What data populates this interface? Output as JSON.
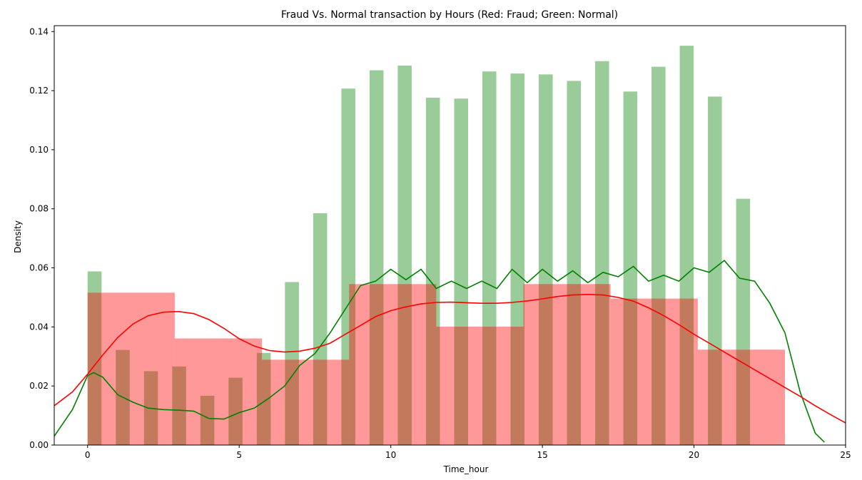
{
  "chart_data": {
    "type": "bar",
    "title": "Fraud Vs. Normal transaction by Hours (Red: Fraud; Green: Normal)",
    "xlabel": "Time_hour",
    "ylabel": "Density",
    "xlim": [
      -1.1,
      25
    ],
    "ylim": [
      0,
      0.142
    ],
    "xticks": [
      0,
      5,
      10,
      15,
      20,
      25
    ],
    "yticks": [
      0.0,
      0.02,
      0.04,
      0.06,
      0.08,
      0.1,
      0.12,
      0.14
    ],
    "grid": false,
    "series": [
      {
        "color": "#008000",
        "alpha": 0.4,
        "bar_width": 0.46,
        "bars": [
          {
            "x": 0.23,
            "y": 0.0588
          },
          {
            "x": 1.16,
            "y": 0.0322
          },
          {
            "x": 2.09,
            "y": 0.025
          },
          {
            "x": 3.02,
            "y": 0.0266
          },
          {
            "x": 3.95,
            "y": 0.0167
          },
          {
            "x": 4.88,
            "y": 0.0228
          },
          {
            "x": 5.81,
            "y": 0.0312
          },
          {
            "x": 6.74,
            "y": 0.0552
          },
          {
            "x": 7.67,
            "y": 0.0785
          },
          {
            "x": 8.6,
            "y": 0.1207
          },
          {
            "x": 9.53,
            "y": 0.1269
          },
          {
            "x": 10.46,
            "y": 0.1285
          },
          {
            "x": 11.39,
            "y": 0.1176
          },
          {
            "x": 12.32,
            "y": 0.1173
          },
          {
            "x": 13.25,
            "y": 0.1265
          },
          {
            "x": 14.18,
            "y": 0.1258
          },
          {
            "x": 15.11,
            "y": 0.1255
          },
          {
            "x": 16.04,
            "y": 0.1233
          },
          {
            "x": 16.97,
            "y": 0.13
          },
          {
            "x": 17.9,
            "y": 0.1197
          },
          {
            "x": 18.83,
            "y": 0.1281
          },
          {
            "x": 19.76,
            "y": 0.1352
          },
          {
            "x": 20.69,
            "y": 0.118
          },
          {
            "x": 21.62,
            "y": 0.0834
          }
        ],
        "kde": [
          [
            -1.1,
            0.003
          ],
          [
            -0.5,
            0.012
          ],
          [
            0,
            0.0235
          ],
          [
            0.2,
            0.0245
          ],
          [
            0.5,
            0.023
          ],
          [
            1,
            0.017
          ],
          [
            1.5,
            0.0145
          ],
          [
            2,
            0.0125
          ],
          [
            2.5,
            0.012
          ],
          [
            3,
            0.0118
          ],
          [
            3.5,
            0.0115
          ],
          [
            4,
            0.009
          ],
          [
            4.5,
            0.0088
          ],
          [
            5,
            0.011
          ],
          [
            5.5,
            0.0125
          ],
          [
            6,
            0.016
          ],
          [
            6.5,
            0.02
          ],
          [
            7,
            0.027
          ],
          [
            7.5,
            0.031
          ],
          [
            8,
            0.038
          ],
          [
            8.5,
            0.046
          ],
          [
            9,
            0.054
          ],
          [
            9.5,
            0.0555
          ],
          [
            10,
            0.0595
          ],
          [
            10.5,
            0.056
          ],
          [
            11,
            0.0595
          ],
          [
            11.5,
            0.053
          ],
          [
            12,
            0.0555
          ],
          [
            12.5,
            0.053
          ],
          [
            13,
            0.0555
          ],
          [
            13.5,
            0.053
          ],
          [
            14,
            0.0595
          ],
          [
            14.5,
            0.055
          ],
          [
            15,
            0.0595
          ],
          [
            15.5,
            0.0555
          ],
          [
            16,
            0.059
          ],
          [
            16.5,
            0.055
          ],
          [
            17,
            0.0585
          ],
          [
            17.5,
            0.057
          ],
          [
            18,
            0.0605
          ],
          [
            18.5,
            0.0555
          ],
          [
            19,
            0.0575
          ],
          [
            19.5,
            0.0555
          ],
          [
            20,
            0.06
          ],
          [
            20.5,
            0.0585
          ],
          [
            21,
            0.0625
          ],
          [
            21.5,
            0.0565
          ],
          [
            22,
            0.0555
          ],
          [
            22.5,
            0.048
          ],
          [
            23,
            0.038
          ],
          [
            23.5,
            0.018
          ],
          [
            24,
            0.004
          ],
          [
            24.3,
            0.001
          ]
        ]
      },
      {
        "color": "#ff0000",
        "alpha": 0.4,
        "bins": [
          {
            "x0": 0,
            "x1": 2.875,
            "y": 0.0516
          },
          {
            "x0": 2.875,
            "x1": 5.75,
            "y": 0.0361
          },
          {
            "x0": 5.75,
            "x1": 8.625,
            "y": 0.0289
          },
          {
            "x0": 8.625,
            "x1": 11.5,
            "y": 0.0545
          },
          {
            "x0": 11.5,
            "x1": 14.375,
            "y": 0.0401
          },
          {
            "x0": 14.375,
            "x1": 17.25,
            "y": 0.0545
          },
          {
            "x0": 17.25,
            "x1": 20.125,
            "y": 0.0496
          },
          {
            "x0": 20.125,
            "x1": 23.0,
            "y": 0.0323
          }
        ],
        "kde": [
          [
            -1.1,
            0.0133
          ],
          [
            -0.5,
            0.018
          ],
          [
            0,
            0.024
          ],
          [
            0.5,
            0.0305
          ],
          [
            1,
            0.0365
          ],
          [
            1.5,
            0.041
          ],
          [
            2,
            0.0438
          ],
          [
            2.5,
            0.045
          ],
          [
            3,
            0.0452
          ],
          [
            3.5,
            0.0445
          ],
          [
            4,
            0.0425
          ],
          [
            4.5,
            0.0395
          ],
          [
            5,
            0.036
          ],
          [
            5.5,
            0.0335
          ],
          [
            6,
            0.032
          ],
          [
            6.5,
            0.0315
          ],
          [
            7,
            0.0318
          ],
          [
            7.5,
            0.0328
          ],
          [
            8,
            0.0345
          ],
          [
            8.5,
            0.0375
          ],
          [
            9,
            0.0405
          ],
          [
            9.5,
            0.0435
          ],
          [
            10,
            0.0455
          ],
          [
            10.5,
            0.0468
          ],
          [
            11,
            0.0478
          ],
          [
            11.5,
            0.0483
          ],
          [
            12,
            0.0484
          ],
          [
            12.5,
            0.0482
          ],
          [
            13,
            0.048
          ],
          [
            13.5,
            0.048
          ],
          [
            14,
            0.0483
          ],
          [
            14.5,
            0.0488
          ],
          [
            15,
            0.0495
          ],
          [
            15.5,
            0.0503
          ],
          [
            16,
            0.0508
          ],
          [
            16.5,
            0.051
          ],
          [
            17,
            0.0508
          ],
          [
            17.5,
            0.05
          ],
          [
            18,
            0.0487
          ],
          [
            18.5,
            0.0465
          ],
          [
            19,
            0.0438
          ],
          [
            19.5,
            0.0408
          ],
          [
            20,
            0.0375
          ],
          [
            20.5,
            0.0345
          ],
          [
            21,
            0.0315
          ],
          [
            21.5,
            0.0285
          ],
          [
            22,
            0.0255
          ],
          [
            22.5,
            0.0225
          ],
          [
            23,
            0.0195
          ],
          [
            23.5,
            0.0165
          ],
          [
            24,
            0.0133
          ],
          [
            24.5,
            0.0103
          ],
          [
            25,
            0.0075
          ]
        ]
      }
    ]
  }
}
